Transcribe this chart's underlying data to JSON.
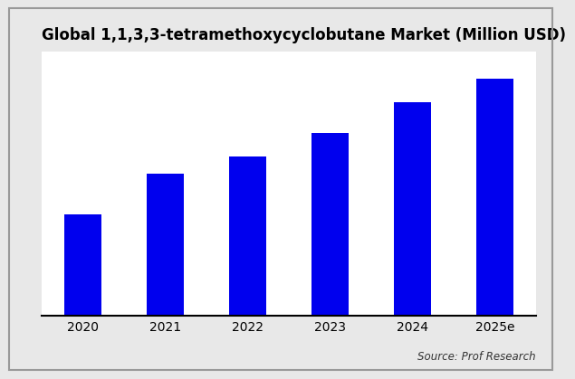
{
  "title": "Global 1,1,3,3-tetramethoxycyclobutane Market (Million USD)",
  "categories": [
    "2020",
    "2021",
    "2022",
    "2023",
    "2024",
    "2025e"
  ],
  "values": [
    30,
    42,
    47,
    54,
    63,
    70
  ],
  "bar_color": "#0000ee",
  "background_color": "#ffffff",
  "outer_background": "#e8e8e8",
  "source_text": "Source: Prof Research",
  "title_fontsize": 12,
  "tick_fontsize": 10,
  "source_fontsize": 8.5,
  "ylim": [
    0,
    78
  ],
  "bar_width": 0.45
}
